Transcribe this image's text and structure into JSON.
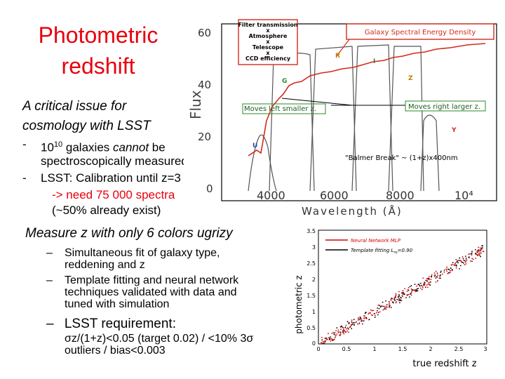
{
  "title": {
    "line1": "Photometric",
    "line2": "redshift"
  },
  "intro": {
    "line1": "A critical issue for",
    "line2": "cosmology with LSST"
  },
  "bullets": [
    {
      "dash": "-",
      "pre": "10",
      "sup": "10",
      "mid": " galaxies ",
      "em": "cannot",
      "post": " be",
      "line2": "spectroscopically measured"
    },
    {
      "dash": "-",
      "text": "LSST: Calibration until z=3"
    }
  ],
  "need": {
    "line1": "-> need 75 000 spectra",
    "line2": "(~50% already exist)"
  },
  "measure": "Measure z with only 6 colors ugrizy",
  "subpoints": [
    {
      "dash": "–",
      "line1": "Simultaneous fit of galaxy type,",
      "line2": "reddening and z"
    },
    {
      "dash": "–",
      "line1": "Template fitting and neural network",
      "line2": "techniques validated with data and",
      "line3": "tuned with simulation"
    }
  ],
  "requirement": {
    "dash": "–",
    "label": "LSST requirement:",
    "line1": "σz/(1+z)<0.05 (target 0.02) / <10% 3σ",
    "line2": "outliers / bias<0.003"
  },
  "spectrum_figure": {
    "y_axis_label": "Flux",
    "y_ticks": [
      "60",
      "40",
      "20",
      "0"
    ],
    "x_ticks": [
      "4000",
      "6000",
      "8000",
      "10⁴"
    ],
    "x_axis_label": "Wavelength (Å)",
    "filter_box": [
      "Filter transmission",
      "x",
      "Atmosphere",
      "x",
      "Telescope",
      "x",
      "CCD efficiency"
    ],
    "sed_box": "Galaxy Spectral Energy Density",
    "left_arrow_label": "Moves left smaller z.",
    "right_arrow_label": "Moves right larger z.",
    "balmer_label": "\"Balmer Break\" ~ (1+z)x400nm",
    "band_labels": [
      "U",
      "G",
      "R",
      "I",
      "Z",
      "Y"
    ]
  },
  "scatter_figure": {
    "y_axis_label": "photometric z",
    "x_axis_label": "true redshift z",
    "y_ticks": [
      "3.5",
      "3",
      "2.5",
      "2",
      "1.5",
      "1",
      "0.5",
      "0"
    ],
    "x_ticks": [
      "0",
      "0.5",
      "1",
      "1.5",
      "2",
      "2.5",
      "3"
    ],
    "legend_nn": "Neural Network MLP",
    "legend_tf": "Template fitting L",
    "legend_tf_sub": "ro",
    "legend_tf_post": "=0.90"
  },
  "colors": {
    "title_red": "#e8000d",
    "need_red": "#e8000d",
    "nn_red": "#d40000",
    "sed_red": "#d42a1c",
    "band_green": "#2b8a2b",
    "band_blue": "#2244aa",
    "band_orange": "#c87a00"
  }
}
